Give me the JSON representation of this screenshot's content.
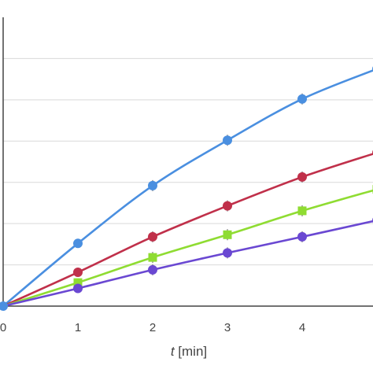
{
  "chart_data": {
    "type": "line",
    "xlabel_var": "t",
    "xlabel_unit": " [min]",
    "x": [
      0,
      1,
      2,
      3,
      4,
      5
    ],
    "xticks": [
      "0",
      "1",
      "2",
      "3",
      "4"
    ],
    "xlim": [
      0,
      5
    ],
    "ylim": [
      0,
      7
    ],
    "ygrid_values": [
      1,
      2,
      3,
      4,
      5,
      6
    ],
    "grid": "horizontal",
    "series": [
      {
        "color": "#4a8fe0",
        "values": [
          0,
          1.52,
          2.92,
          4.02,
          5.02,
          5.75
        ]
      },
      {
        "color": "#c0304a",
        "values": [
          0,
          0.82,
          1.68,
          2.43,
          3.13,
          3.72
        ]
      },
      {
        "color": "#8fdc32",
        "values": [
          0,
          0.57,
          1.18,
          1.73,
          2.31,
          2.83
        ]
      },
      {
        "color": "#6a48d2",
        "values": [
          0,
          0.43,
          0.88,
          1.29,
          1.68,
          2.08
        ]
      }
    ]
  }
}
